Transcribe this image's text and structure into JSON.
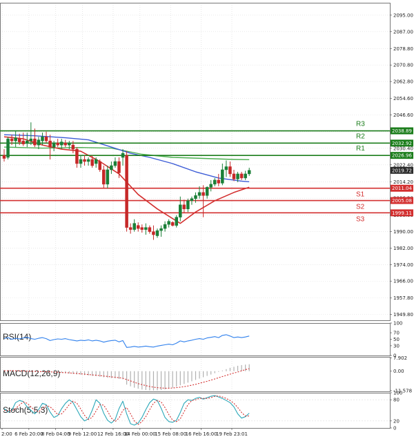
{
  "chart_data": {
    "type": "candlestick",
    "instrument_note": "Gold price chart with pivot levels and indicators",
    "colors": {
      "bull": "#1a7f37",
      "bear": "#c62828",
      "ma_fast": "#d32f2f",
      "ma_mid": "#3b5bd6",
      "ma_slow": "#4caf50",
      "resistance": "#1b7d1b",
      "support": "#d32f2f",
      "current": "#2b2b2b",
      "rsi": "#2f80ed",
      "macd": "#d32f2f",
      "macd_hist": "#b0b0b0",
      "stoch_k": "#2aa7b8",
      "stoch_d": "#d32f2f",
      "grid": "#dcdcdc",
      "axis": "#555555"
    },
    "price_axis": {
      "min": 1947,
      "max": 2101,
      "ticks": [
        "2095.00",
        "2087.00",
        "2078.80",
        "2070.80",
        "2062.80",
        "2054.60",
        "2046.60",
        "2038.40",
        "2030.40",
        "2022.40",
        "2014.20",
        "2006.20",
        "1998.00",
        "1990.00",
        "1982.00",
        "1974.00",
        "1966.00",
        "1957.80",
        "1949.80"
      ]
    },
    "time_labels": [
      "2:00",
      "6 Feb 20:00",
      "8 Feb 04:00",
      "9 Feb 12:00",
      "12 Feb 16:00",
      "14 Feb 00:00",
      "15 Feb 08:00",
      "16 Feb 16:00",
      "19 Feb 23:01"
    ],
    "candles": [
      {
        "o": 2027.0,
        "h": 2030.0,
        "l": 2024.0,
        "c": 2025.5
      },
      {
        "o": 2026.0,
        "h": 2036.0,
        "l": 2025.0,
        "c": 2035.0
      },
      {
        "o": 2035.0,
        "h": 2037.0,
        "l": 2032.0,
        "c": 2034.0
      },
      {
        "o": 2034.0,
        "h": 2039.0,
        "l": 2031.0,
        "c": 2035.5
      },
      {
        "o": 2035.0,
        "h": 2037.5,
        "l": 2032.0,
        "c": 2033.5
      },
      {
        "o": 2034.0,
        "h": 2038.0,
        "l": 2031.5,
        "c": 2032.5
      },
      {
        "o": 2033.0,
        "h": 2038.0,
        "l": 2031.0,
        "c": 2034.0
      },
      {
        "o": 2034.0,
        "h": 2043.0,
        "l": 2032.0,
        "c": 2035.0
      },
      {
        "o": 2035.0,
        "h": 2040.0,
        "l": 2031.0,
        "c": 2032.0
      },
      {
        "o": 2032.0,
        "h": 2036.0,
        "l": 2030.0,
        "c": 2034.5
      },
      {
        "o": 2034.0,
        "h": 2038.0,
        "l": 2032.0,
        "c": 2036.0
      },
      {
        "o": 2036.0,
        "h": 2038.5,
        "l": 2033.0,
        "c": 2034.0
      },
      {
        "o": 2034.0,
        "h": 2037.0,
        "l": 2025.0,
        "c": 2031.0
      },
      {
        "o": 2031.0,
        "h": 2034.0,
        "l": 2029.0,
        "c": 2033.0
      },
      {
        "o": 2033.0,
        "h": 2035.0,
        "l": 2031.0,
        "c": 2032.0
      },
      {
        "o": 2032.0,
        "h": 2035.0,
        "l": 2030.0,
        "c": 2033.5
      },
      {
        "o": 2033.0,
        "h": 2034.5,
        "l": 2031.0,
        "c": 2032.0
      },
      {
        "o": 2032.0,
        "h": 2034.0,
        "l": 2030.0,
        "c": 2033.0
      },
      {
        "o": 2032.0,
        "h": 2034.0,
        "l": 2028.0,
        "c": 2030.0
      },
      {
        "o": 2030.0,
        "h": 2031.0,
        "l": 2021.0,
        "c": 2023.0
      },
      {
        "o": 2023.0,
        "h": 2027.0,
        "l": 2021.0,
        "c": 2025.0
      },
      {
        "o": 2025.0,
        "h": 2027.0,
        "l": 2022.0,
        "c": 2024.0
      },
      {
        "o": 2024.0,
        "h": 2026.0,
        "l": 2022.0,
        "c": 2025.0
      },
      {
        "o": 2025.0,
        "h": 2027.0,
        "l": 2021.0,
        "c": 2022.0
      },
      {
        "o": 2023.0,
        "h": 2026.0,
        "l": 2021.0,
        "c": 2025.0
      },
      {
        "o": 2024.0,
        "h": 2025.0,
        "l": 2019.0,
        "c": 2020.0
      },
      {
        "o": 2020.0,
        "h": 2022.0,
        "l": 2011.0,
        "c": 2013.0
      },
      {
        "o": 2013.0,
        "h": 2022.0,
        "l": 2011.0,
        "c": 2020.0
      },
      {
        "o": 2020.0,
        "h": 2024.0,
        "l": 2018.0,
        "c": 2022.0
      },
      {
        "o": 2022.0,
        "h": 2026.0,
        "l": 2021.0,
        "c": 2024.0
      },
      {
        "o": 2024.0,
        "h": 2026.0,
        "l": 2016.0,
        "c": 2018.5
      },
      {
        "o": 2026.0,
        "h": 2030.0,
        "l": 2022.0,
        "c": 2028.0
      },
      {
        "o": 2027.0,
        "h": 2029.0,
        "l": 1990.0,
        "c": 1992.0
      },
      {
        "o": 1992.0,
        "h": 1994.0,
        "l": 1989.0,
        "c": 1991.0
      },
      {
        "o": 1991.0,
        "h": 1996.0,
        "l": 1990.0,
        "c": 1994.0
      },
      {
        "o": 1993.0,
        "h": 1994.5,
        "l": 1990.0,
        "c": 1991.5
      },
      {
        "o": 1992.0,
        "h": 1993.5,
        "l": 1989.5,
        "c": 1991.0
      },
      {
        "o": 1991.0,
        "h": 1994.0,
        "l": 1988.5,
        "c": 1992.0
      },
      {
        "o": 1992.0,
        "h": 1993.0,
        "l": 1989.0,
        "c": 1990.0
      },
      {
        "o": 1990.0,
        "h": 1993.0,
        "l": 1986.0,
        "c": 1988.5
      },
      {
        "o": 1988.0,
        "h": 1991.5,
        "l": 1987.0,
        "c": 1990.5
      },
      {
        "o": 1990.5,
        "h": 1993.0,
        "l": 1987.5,
        "c": 1991.5
      },
      {
        "o": 1991.5,
        "h": 1995.0,
        "l": 1990.0,
        "c": 1993.5
      },
      {
        "o": 1993.5,
        "h": 1996.0,
        "l": 1992.0,
        "c": 1995.0
      },
      {
        "o": 1994.5,
        "h": 1995.0,
        "l": 1992.5,
        "c": 1993.0
      },
      {
        "o": 1993.0,
        "h": 1998.0,
        "l": 1992.0,
        "c": 1997.0
      },
      {
        "o": 1997.0,
        "h": 2007.0,
        "l": 1995.0,
        "c": 2003.0
      },
      {
        "o": 2003.0,
        "h": 2005.5,
        "l": 1999.0,
        "c": 2001.0
      },
      {
        "o": 2001.0,
        "h": 2006.0,
        "l": 1999.5,
        "c": 2005.0
      },
      {
        "o": 2005.0,
        "h": 2007.0,
        "l": 2003.0,
        "c": 2006.0
      },
      {
        "o": 2006.0,
        "h": 2009.0,
        "l": 2004.0,
        "c": 2007.5
      },
      {
        "o": 2007.5,
        "h": 2012.0,
        "l": 2006.0,
        "c": 2009.0
      },
      {
        "o": 2009.0,
        "h": 2012.5,
        "l": 1997.0,
        "c": 2007.5
      },
      {
        "o": 2007.5,
        "h": 2012.0,
        "l": 2006.0,
        "c": 2011.5
      },
      {
        "o": 2011.5,
        "h": 2015.0,
        "l": 2009.5,
        "c": 2013.0
      },
      {
        "o": 2013.0,
        "h": 2016.0,
        "l": 2012.0,
        "c": 2015.0
      },
      {
        "o": 2015.0,
        "h": 2018.0,
        "l": 2012.0,
        "c": 2013.5
      },
      {
        "o": 2013.5,
        "h": 2023.0,
        "l": 2012.5,
        "c": 2020.0
      },
      {
        "o": 2020.0,
        "h": 2024.5,
        "l": 2016.5,
        "c": 2021.5
      },
      {
        "o": 2021.5,
        "h": 2024.0,
        "l": 2016.5,
        "c": 2018.0
      },
      {
        "o": 2018.0,
        "h": 2020.0,
        "l": 2014.5,
        "c": 2015.5
      },
      {
        "o": 2015.5,
        "h": 2019.0,
        "l": 2014.0,
        "c": 2018.0
      },
      {
        "o": 2018.0,
        "h": 2019.0,
        "l": 2015.0,
        "c": 2016.0
      },
      {
        "o": 2016.0,
        "h": 2019.5,
        "l": 2015.0,
        "c": 2018.0
      },
      {
        "o": 2018.0,
        "h": 2021.0,
        "l": 2017.0,
        "c": 2019.72
      }
    ],
    "ma_fast": [
      [
        0,
        2036
      ],
      [
        5,
        2035
      ],
      [
        10,
        2032
      ],
      [
        15,
        2030
      ],
      [
        20,
        2029
      ],
      [
        25,
        2024
      ],
      [
        30,
        2018
      ],
      [
        35,
        2008
      ],
      [
        40,
        2001
      ],
      [
        46,
        1994
      ],
      [
        50,
        1999.5
      ],
      [
        55,
        2005
      ],
      [
        60,
        2009
      ],
      [
        64,
        2011.5
      ]
    ],
    "ma_mid": [
      [
        0,
        2037
      ],
      [
        8,
        2036.5
      ],
      [
        16,
        2035.5
      ],
      [
        22,
        2034.5
      ],
      [
        28,
        2031
      ],
      [
        33,
        2028
      ],
      [
        38,
        2026
      ],
      [
        44,
        2023
      ],
      [
        50,
        2019
      ],
      [
        56,
        2016
      ],
      [
        62,
        2014.5
      ],
      [
        64,
        2014.2
      ]
    ],
    "ma_slow": [
      [
        0,
        2031
      ],
      [
        10,
        2030.5
      ],
      [
        20,
        2030.8
      ],
      [
        28,
        2030.5
      ],
      [
        36,
        2027.5
      ],
      [
        44,
        2026
      ],
      [
        52,
        2025.5
      ],
      [
        60,
        2025
      ],
      [
        64,
        2024.9
      ]
    ],
    "levels": [
      {
        "name": "R3",
        "value": 2038.89,
        "label": "2038.89",
        "kind": "resistance"
      },
      {
        "name": "R2",
        "value": 2032.92,
        "label": "2032.92",
        "kind": "resistance"
      },
      {
        "name": "R1",
        "value": 2026.96,
        "label": "2026.96",
        "kind": "resistance"
      },
      {
        "name": "S1",
        "value": 2011.04,
        "label": "2011.04",
        "kind": "support"
      },
      {
        "name": "S2",
        "value": 2005.08,
        "label": "2005.08",
        "kind": "support"
      },
      {
        "name": "S3",
        "value": 1999.11,
        "label": "1999.11",
        "kind": "support"
      }
    ],
    "current_price": {
      "value": 2019.72,
      "label": "2019.72"
    },
    "rsi": {
      "label": "RSI(14)",
      "ticks": [
        "100",
        "70",
        "50",
        "30",
        "0"
      ],
      "ylim": [
        0,
        100
      ],
      "values": [
        52,
        55,
        50,
        53,
        51,
        54,
        56,
        52,
        50,
        53,
        55,
        52,
        46,
        49,
        51,
        50,
        52,
        49,
        47,
        45,
        47,
        46,
        48,
        45,
        47,
        45,
        41,
        44,
        46,
        47,
        42,
        46,
        25,
        26,
        28,
        26,
        27,
        29,
        27,
        26,
        29,
        31,
        33,
        35,
        33,
        38,
        45,
        42,
        45,
        47,
        50,
        52,
        50,
        54,
        56,
        58,
        55,
        62,
        64,
        60,
        55,
        57,
        55,
        57,
        60
      ]
    },
    "macd": {
      "label": "MACD(12,26,9)",
      "ticks": [
        "7.902",
        "0.00",
        "-11.578"
      ],
      "ylim": [
        -12,
        8.5
      ],
      "hist": [
        0.3,
        0.4,
        0.3,
        0.2,
        0.1,
        0.0,
        -0.1,
        -0.1,
        -0.2,
        -0.2,
        -0.3,
        -0.4,
        -0.6,
        -0.8,
        -0.9,
        -1.0,
        -1.2,
        -1.4,
        -1.6,
        -1.9,
        -2.1,
        -2.3,
        -2.5,
        -2.8,
        -3.0,
        -3.3,
        -3.6,
        -3.9,
        -4.1,
        -4.3,
        -4.6,
        -4.8,
        -8.0,
        -9.0,
        -9.8,
        -10.4,
        -10.9,
        -11.2,
        -11.4,
        -11.5,
        -11.4,
        -11.2,
        -10.8,
        -10.3,
        -9.8,
        -9.2,
        -8.4,
        -7.6,
        -6.8,
        -6.0,
        -5.2,
        -4.4,
        -3.6,
        -2.8,
        -2.0,
        -1.2,
        -0.4,
        0.4,
        1.2,
        2.0,
        2.6,
        3.2,
        3.6,
        3.9,
        4.1
      ],
      "signal": [
        0.2,
        0.3,
        0.3,
        0.2,
        0.2,
        0.1,
        0.0,
        -0.1,
        -0.1,
        -0.2,
        -0.3,
        -0.3,
        -0.4,
        -0.5,
        -0.6,
        -0.8,
        -0.9,
        -1.0,
        -1.2,
        -1.4,
        -1.6,
        -1.8,
        -2.0,
        -2.2,
        -2.4,
        -2.6,
        -2.9,
        -3.1,
        -3.4,
        -3.6,
        -3.9,
        -4.2,
        -5.0,
        -5.8,
        -6.6,
        -7.4,
        -8.0,
        -8.6,
        -9.1,
        -9.5,
        -9.8,
        -10.0,
        -10.1,
        -10.1,
        -10.0,
        -9.8,
        -9.5,
        -9.2,
        -8.8,
        -8.3,
        -7.8,
        -7.2,
        -6.6,
        -6.0,
        -5.3,
        -4.6,
        -3.9,
        -3.2,
        -2.5,
        -1.8,
        -1.1,
        -0.5,
        0.2,
        0.9,
        1.5
      ]
    },
    "stoch": {
      "label": "Stoch(5,5,3)",
      "ticks": [
        "100",
        "80",
        "20",
        "0"
      ],
      "ylim": [
        0,
        100
      ],
      "k": [
        55,
        45,
        50,
        72,
        78,
        75,
        60,
        50,
        40,
        52,
        70,
        66,
        45,
        30,
        35,
        55,
        70,
        80,
        72,
        52,
        32,
        20,
        26,
        50,
        80,
        70,
        42,
        22,
        14,
        24,
        55,
        76,
        40,
        12,
        8,
        14,
        30,
        52,
        72,
        82,
        78,
        56,
        30,
        18,
        16,
        22,
        44,
        70,
        80,
        78,
        84,
        87,
        82,
        86,
        90,
        92,
        88,
        84,
        78,
        72,
        60,
        40,
        28,
        32,
        42
      ],
      "d": [
        50,
        48,
        49,
        55,
        65,
        74,
        70,
        60,
        50,
        46,
        55,
        64,
        60,
        50,
        38,
        40,
        52,
        66,
        76,
        70,
        54,
        36,
        24,
        30,
        48,
        66,
        65,
        48,
        28,
        18,
        28,
        50,
        58,
        40,
        20,
        10,
        18,
        32,
        52,
        70,
        78,
        74,
        58,
        38,
        22,
        18,
        26,
        46,
        66,
        78,
        80,
        84,
        84,
        84,
        86,
        90,
        91,
        88,
        84,
        78,
        70,
        58,
        44,
        34,
        34
      ]
    }
  }
}
